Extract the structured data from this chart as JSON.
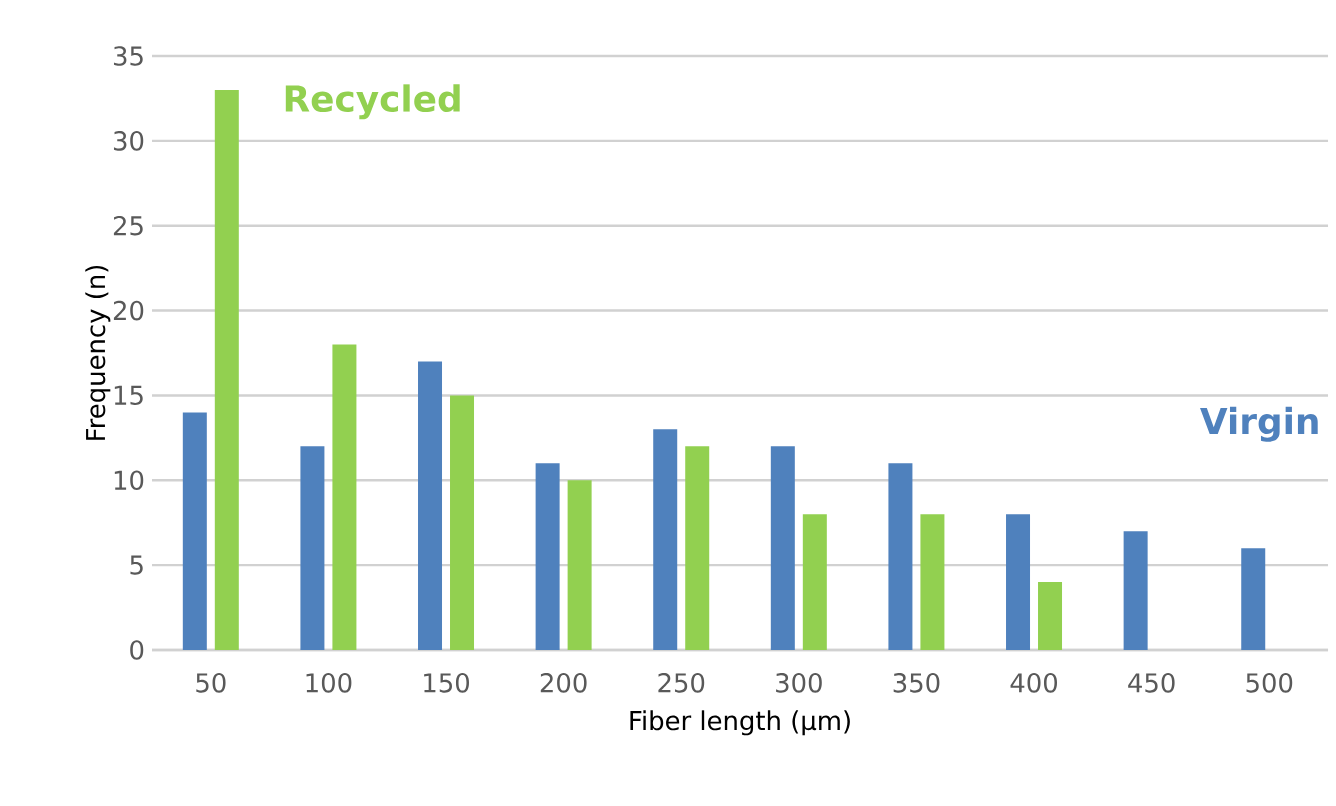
{
  "chart_data": {
    "type": "bar",
    "xlabel": "Fiber length (μm)",
    "ylabel": "Frequency (n)",
    "categories": [
      "50",
      "100",
      "150",
      "200",
      "250",
      "300",
      "350",
      "400",
      "450",
      "500"
    ],
    "series": [
      {
        "name": "Virgin",
        "color": "#4f81bd",
        "values": [
          14,
          12,
          17,
          11,
          13,
          12,
          11,
          8,
          7,
          6
        ]
      },
      {
        "name": "Recycled",
        "color": "#92d050",
        "values": [
          33,
          18,
          15,
          10,
          12,
          8,
          8,
          4,
          null,
          null
        ]
      }
    ],
    "ylim": [
      0,
      35
    ],
    "yticks": [
      0,
      5,
      10,
      15,
      20,
      25,
      30,
      35
    ],
    "grid": "y",
    "legend": false
  }
}
